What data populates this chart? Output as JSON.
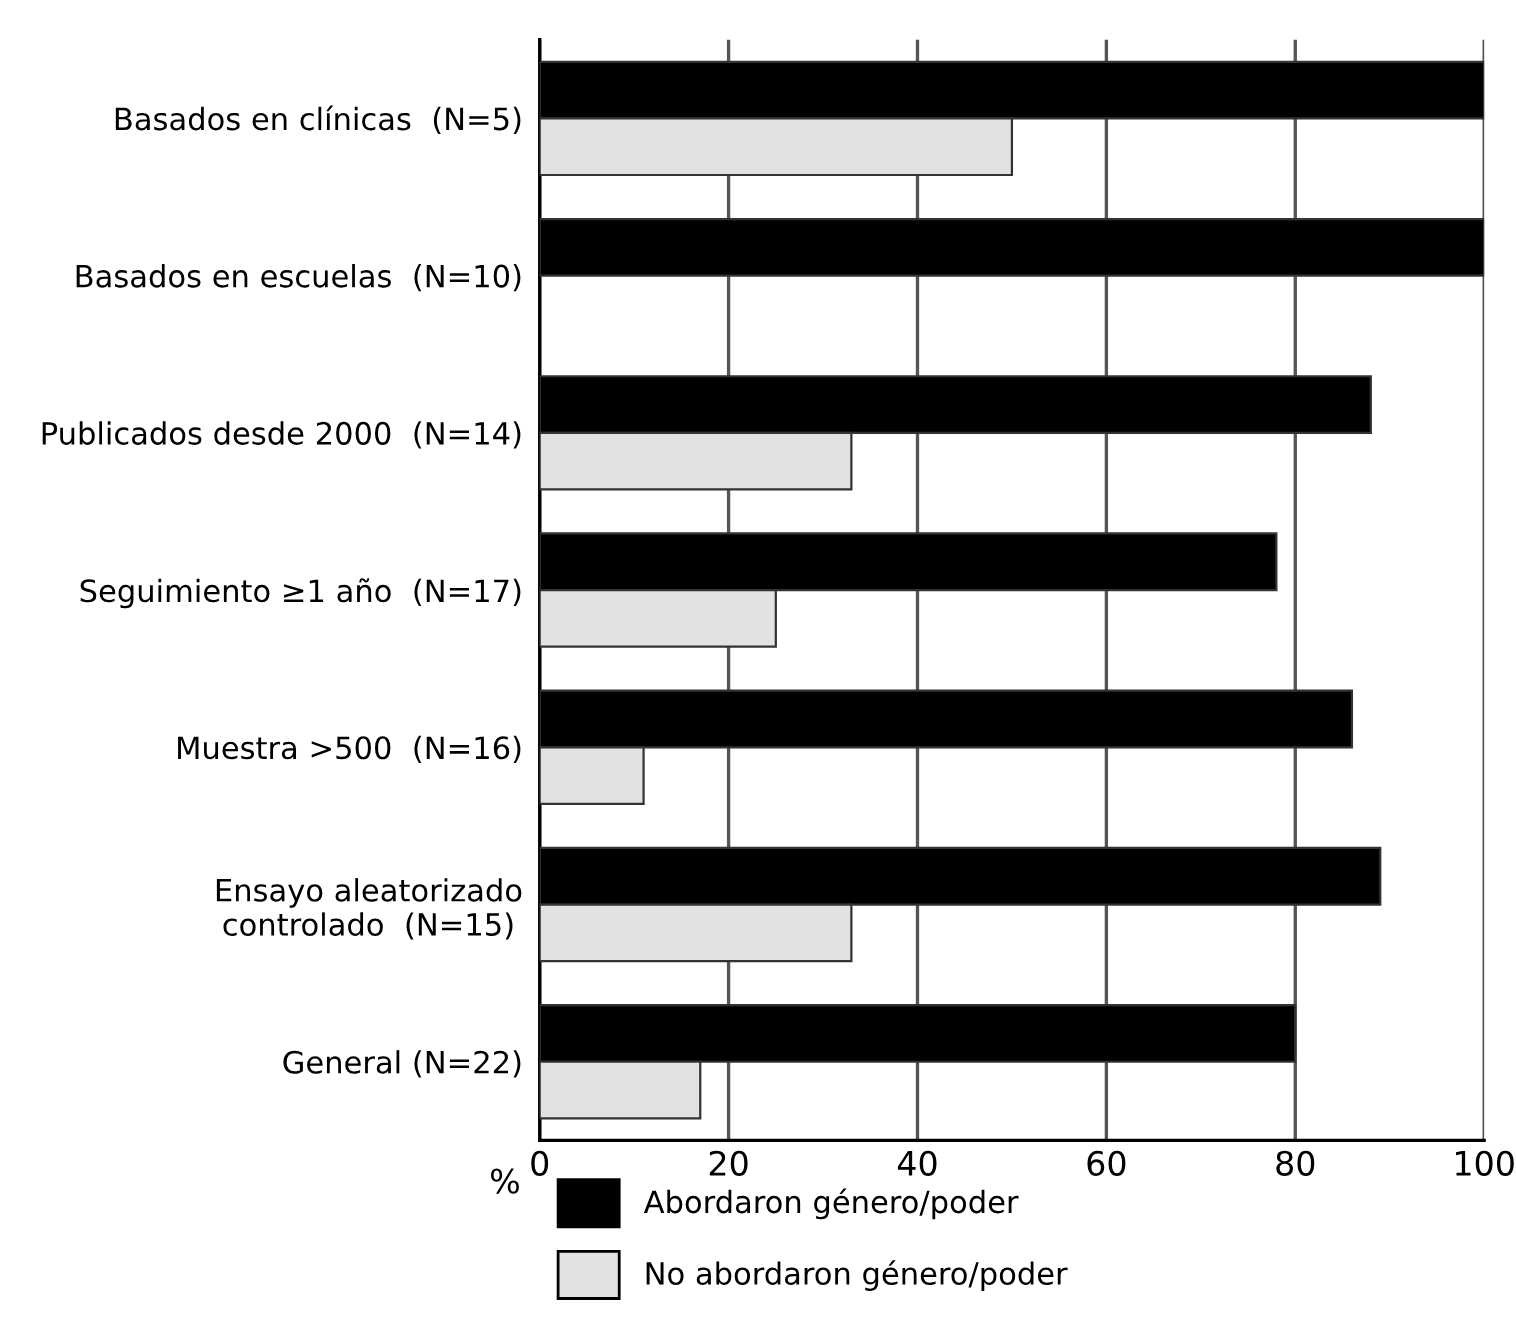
{
  "chart_data": {
    "type": "bar",
    "orientation": "horizontal",
    "xlabel": "%",
    "categories": [
      "Basados en clínicas  (N=5)",
      "Basados en escuelas  (N=10)",
      "Publicados desde 2000  (N=14)",
      "Seguimiento ≥1 año  (N=17)",
      "Muestra >500  (N=16)",
      "Ensayo aleatorizado\ncontrolado  (N=15)",
      "General (N=22)"
    ],
    "series": [
      {
        "name": "Abordaron género/poder",
        "color": "#000000",
        "values": [
          100,
          100,
          88,
          78,
          86,
          89,
          80
        ]
      },
      {
        "name": "No abordaron género/poder",
        "color": "#e1e2e4",
        "values": [
          50,
          null,
          33,
          25,
          11,
          33,
          17
        ]
      }
    ],
    "xlim": [
      0,
      100
    ],
    "xticks": [
      0,
      20,
      40,
      60,
      80,
      100
    ],
    "grid": "x",
    "legend": "bottom"
  }
}
